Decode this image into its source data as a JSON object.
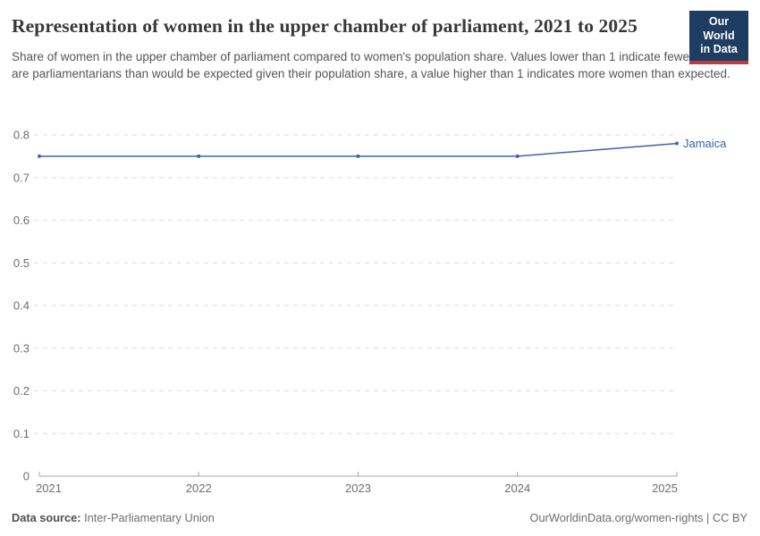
{
  "header": {
    "title": "Representation of women in the upper chamber of parliament, 2021 to 2025",
    "subtitle": "Share of women in the upper chamber of parliament compared to women's population share. Values lower than 1 indicate fewer women are parliamentarians than would be expected given their population share, a value higher than 1 indicates more women than expected.",
    "logo": {
      "line1": "Our World",
      "line2": "in Data"
    }
  },
  "chart_data": {
    "type": "line",
    "title": "Representation of women in the upper chamber of parliament, 2021 to 2025",
    "x": [
      "2021",
      "2022",
      "2023",
      "2024",
      "2025"
    ],
    "series": [
      {
        "name": "Jamaica",
        "values": [
          0.75,
          0.75,
          0.75,
          0.75,
          0.78
        ],
        "color": "#3e63ab"
      }
    ],
    "ylim": [
      0,
      0.8
    ],
    "ytick_interval": 0.1,
    "grid": "dashed-horizontal",
    "legend_position": "end-of-line-label",
    "xlabel": "",
    "ylabel": ""
  },
  "footer": {
    "source_label": "Data source:",
    "source_value": "Inter-Parliamentary Union",
    "credit": "OurWorldinData.org/women-rights | CC BY"
  },
  "colors": {
    "accent_line": "#3e63ab",
    "grid": "#dcdcdc",
    "axis": "#a5a5a5",
    "tick_label": "#6e6e6e",
    "logo_bg": "#1d3d63",
    "logo_stripe": "#c43a38"
  }
}
